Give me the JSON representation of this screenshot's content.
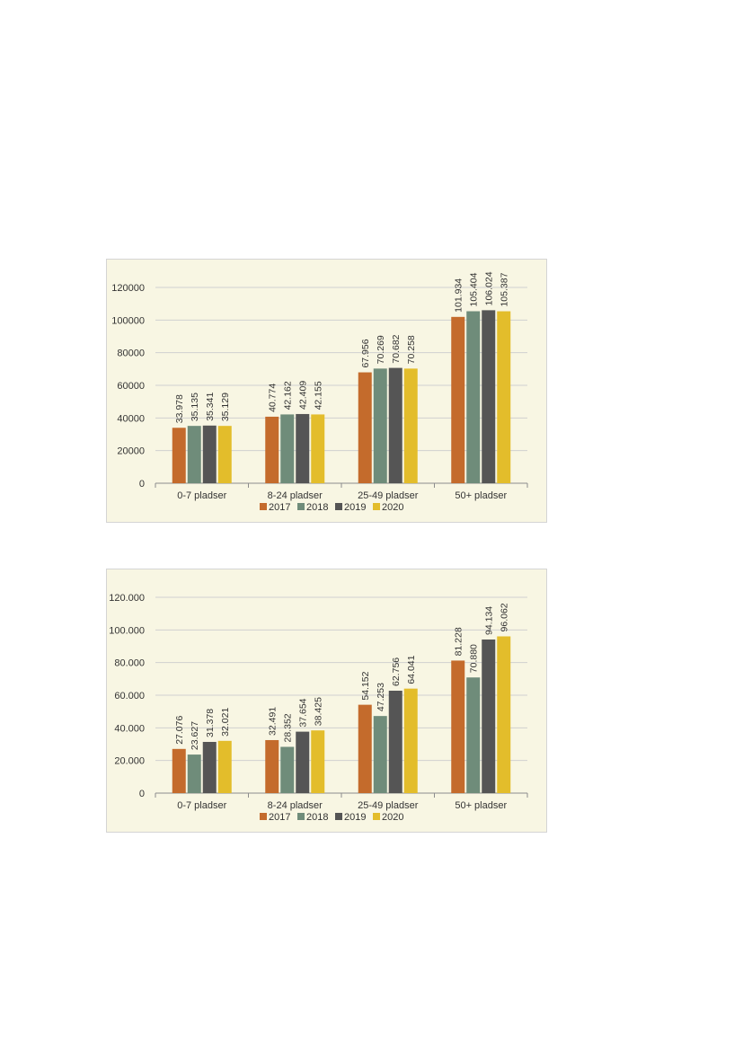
{
  "colors": {
    "2017": "#c46b2c",
    "2018": "#6f8c7a",
    "2019": "#555555",
    "2020": "#e3bd2b",
    "grid": "#d0d0d0",
    "axis": "#8c8c8c",
    "background": "#f8f6e3"
  },
  "chart_data": [
    {
      "type": "bar",
      "categories": [
        "0-7 pladser",
        "8-24 pladser",
        "25-49 pladser",
        "50+ pladser"
      ],
      "series": [
        {
          "name": "2017",
          "values": [
            33978,
            40774,
            67956,
            101934
          ],
          "labels": [
            "33.978",
            "40.774",
            "67.956",
            "101.934"
          ]
        },
        {
          "name": "2018",
          "values": [
            35135,
            42162,
            70269,
            105404
          ],
          "labels": [
            "35.135",
            "42.162",
            "70.269",
            "105.404"
          ]
        },
        {
          "name": "2019",
          "values": [
            35341,
            42409,
            70682,
            106024
          ],
          "labels": [
            "35.341",
            "42.409",
            "70.682",
            "106.024"
          ]
        },
        {
          "name": "2020",
          "values": [
            35129,
            42155,
            70258,
            105387
          ],
          "labels": [
            "35.129",
            "42.155",
            "70.258",
            "105.387"
          ]
        }
      ],
      "ylim": [
        0,
        120000
      ],
      "yticks": [
        "0",
        "20000",
        "40000",
        "60000",
        "80000",
        "100000",
        "120000"
      ],
      "grid": true,
      "legend": "bottom"
    },
    {
      "type": "bar",
      "categories": [
        "0-7 pladser",
        "8-24 pladser",
        "25-49 pladser",
        "50+ pladser"
      ],
      "series": [
        {
          "name": "2017",
          "values": [
            27076,
            32491,
            54152,
            81228
          ],
          "labels": [
            "27.076",
            "32.491",
            "54.152",
            "81.228"
          ]
        },
        {
          "name": "2018",
          "values": [
            23627,
            28352,
            47253,
            70880
          ],
          "labels": [
            "23.627",
            "28.352",
            "47.253",
            "70.880"
          ]
        },
        {
          "name": "2019",
          "values": [
            31378,
            37654,
            62756,
            94134
          ],
          "labels": [
            "31.378",
            "37.654",
            "62.756",
            "94.134"
          ]
        },
        {
          "name": "2020",
          "values": [
            32021,
            38425,
            64041,
            96062
          ],
          "labels": [
            "32.021",
            "38.425",
            "64.041",
            "96.062"
          ]
        }
      ],
      "ylim": [
        0,
        120000
      ],
      "yticks": [
        "0",
        "20.000",
        "40.000",
        "60.000",
        "80.000",
        "100.000",
        "120.000"
      ],
      "grid": true,
      "legend": "bottom"
    }
  ]
}
